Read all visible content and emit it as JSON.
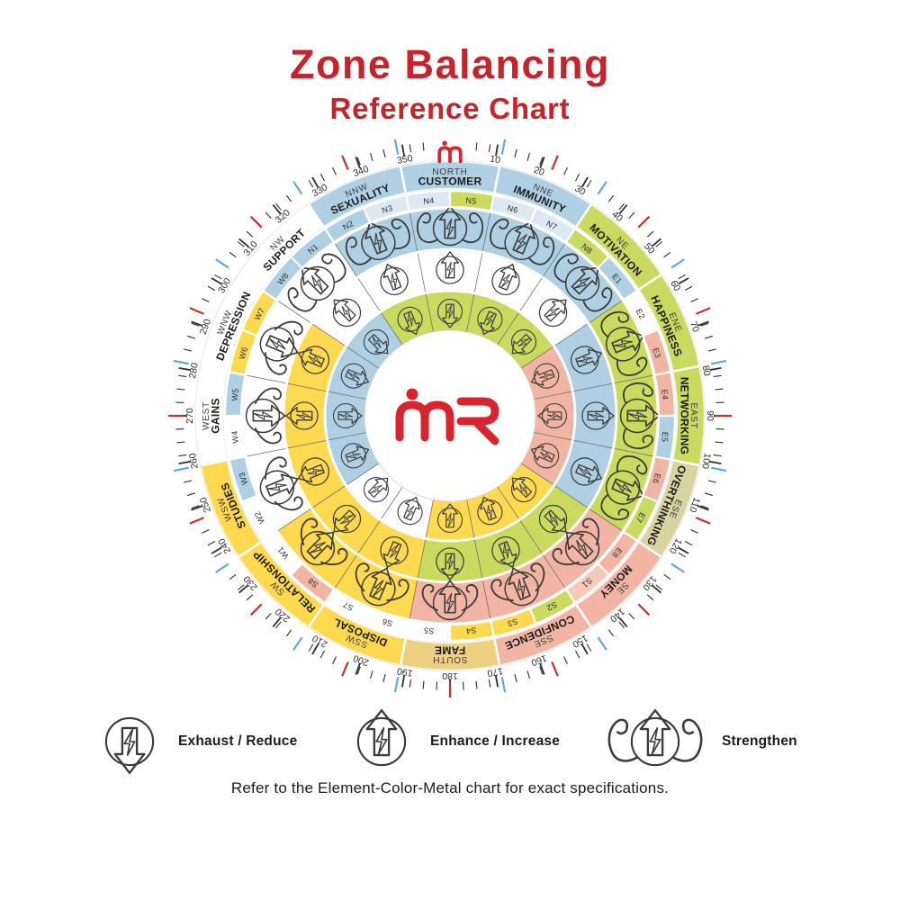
{
  "title": {
    "line1": "Zone Balancing",
    "line2": "Reference Chart"
  },
  "footer": "Refer to the Element-Color-Metal chart for exact specifications.",
  "legend": [
    {
      "icon": "exhaust-icon",
      "label": "Exhaust / Reduce"
    },
    {
      "icon": "enhance-icon",
      "label": "Enhance / Increase"
    },
    {
      "icon": "strengthen-icon",
      "label": "Strengthen"
    }
  ],
  "colors": {
    "title_red": "#c7232b",
    "logo_red": "#d7242e",
    "tick_black": "#2e2e2e",
    "tick_red": "#c23430",
    "tick_blue": "#64a9d6",
    "icon_line": "#3a3a3a",
    "palette": {
      "blue": "#aed0e2",
      "paleblue": "#dce9f2",
      "green": "#c9da5e",
      "yellow": "#ffd94f",
      "salmon": "#f2b5a4",
      "palesalmon": "#f6c9ba",
      "white": "#ffffff",
      "tan": "#d9d2a1",
      "fametan": "#edd180"
    }
  },
  "chart": {
    "center_logo": "MR",
    "degree_labels": [
      10,
      20,
      30,
      40,
      50,
      60,
      70,
      80,
      90,
      100,
      110,
      120,
      130,
      140,
      150,
      160,
      170,
      180,
      190,
      200,
      210,
      220,
      230,
      240,
      250,
      260,
      270,
      280,
      290,
      300,
      310,
      320,
      330,
      340,
      350
    ],
    "zones": [
      {
        "name": "CUSTOMER",
        "direction": "NORTH",
        "bearing": 0,
        "band": "blue",
        "codes": [
          {
            "label": "N4",
            "color": "paleblue"
          },
          {
            "label": "N5",
            "color": "green"
          }
        ],
        "rings": {
          "outer": {
            "color": "blue",
            "icon": "strengthen"
          },
          "middle": {
            "color": "white",
            "icon": "enhance"
          },
          "inner": {
            "color": "green",
            "icon": "reduce"
          }
        }
      },
      {
        "name": "IMMUNITY",
        "direction": "NNE",
        "bearing": 22.5,
        "band": "blue",
        "codes": [
          {
            "label": "N6",
            "color": "paleblue"
          },
          {
            "label": "N7",
            "color": "paleblue"
          }
        ],
        "rings": {
          "outer": {
            "color": "blue",
            "icon": "strengthen"
          },
          "middle": {
            "color": "white",
            "icon": "enhance"
          },
          "inner": {
            "color": "green",
            "icon": "reduce"
          }
        }
      },
      {
        "name": "MOTIVATION",
        "direction": "NE",
        "bearing": 45,
        "band": "green",
        "codes": [
          {
            "label": "N8",
            "color": "green"
          },
          {
            "label": "E1",
            "color": "blue"
          }
        ],
        "rings": {
          "outer": {
            "color": "blue",
            "icon": "strengthen"
          },
          "middle": {
            "color": "white",
            "icon": "enhance"
          },
          "inner": {
            "color": "green",
            "icon": "reduce"
          }
        }
      },
      {
        "name": "HAPPINESS",
        "direction": "ENE",
        "bearing": 67.5,
        "band": "green",
        "codes": [
          {
            "label": "E2",
            "color": "white"
          },
          {
            "label": "E3",
            "color": "salmon"
          }
        ],
        "rings": {
          "outer": {
            "color": "green",
            "icon": "strengthen"
          },
          "middle": {
            "color": "blue",
            "icon": "enhance"
          },
          "inner": {
            "color": "salmon",
            "icon": "reduce"
          }
        }
      },
      {
        "name": "NETWORKING",
        "direction": "EAST",
        "bearing": 90,
        "band": "green",
        "codes": [
          {
            "label": "E4",
            "color": "salmon"
          },
          {
            "label": "E5",
            "color": "blue"
          }
        ],
        "rings": {
          "outer": {
            "color": "green",
            "icon": "strengthen"
          },
          "middle": {
            "color": "blue",
            "icon": "enhance"
          },
          "inner": {
            "color": "salmon",
            "icon": "reduce"
          }
        }
      },
      {
        "name": "OVERTHINKING",
        "direction": "ESE",
        "bearing": 112.5,
        "band": "tan",
        "codes": [
          {
            "label": "E6",
            "color": "salmon"
          },
          {
            "label": "E7",
            "color": "green"
          }
        ],
        "rings": {
          "outer": {
            "color": "green",
            "icon": "strengthen"
          },
          "middle": {
            "color": "blue",
            "icon": "enhance"
          },
          "inner": {
            "color": "salmon",
            "icon": "reduce"
          }
        }
      },
      {
        "name": "MONEY",
        "direction": "SE",
        "bearing": 135,
        "band": "salmon",
        "codes": [
          {
            "label": "E8",
            "color": "salmon"
          },
          {
            "label": "S1",
            "color": "palesalmon"
          }
        ],
        "rings": {
          "outer": {
            "color": "salmon",
            "icon": "exhaust"
          },
          "middle": {
            "color": "green",
            "icon": "enhance"
          },
          "inner": {
            "color": "yellow",
            "icon": "reduce"
          }
        }
      },
      {
        "name": "CONFIDENCE",
        "direction": "SSE",
        "bearing": 157.5,
        "band": "salmon",
        "codes": [
          {
            "label": "S2",
            "color": "green"
          },
          {
            "label": "S3",
            "color": "yellow"
          }
        ],
        "rings": {
          "outer": {
            "color": "salmon",
            "icon": "exhaust"
          },
          "middle": {
            "color": "green",
            "icon": "enhance"
          },
          "inner": {
            "color": "yellow",
            "icon": "reduce"
          }
        }
      },
      {
        "name": "FAME",
        "direction": "SOUTH",
        "bearing": 180,
        "band": "fametan",
        "codes": [
          {
            "label": "S4",
            "color": "yellow"
          },
          {
            "label": "S5",
            "color": "white"
          }
        ],
        "rings": {
          "outer": {
            "color": "salmon",
            "icon": "exhaust"
          },
          "middle": {
            "color": "green",
            "icon": "enhance"
          },
          "inner": {
            "color": "yellow",
            "icon": "reduce"
          }
        }
      },
      {
        "name": "DISPOSAL",
        "direction": "SSW",
        "bearing": 202.5,
        "band": "yellow",
        "codes": [
          {
            "label": "S6",
            "color": "white"
          },
          {
            "label": "S7",
            "color": "white"
          }
        ],
        "rings": {
          "outer": {
            "color": "yellow",
            "icon": "exhaust"
          },
          "middle": {
            "color": "yellow",
            "icon": "enhance"
          },
          "inner": {
            "color": "white",
            "icon": "reduce"
          }
        }
      },
      {
        "name": "RELATIONSHIP",
        "direction": "SW",
        "bearing": 225,
        "band": "yellow",
        "codes": [
          {
            "label": "S8",
            "color": "salmon"
          },
          {
            "label": "W1",
            "color": "white"
          }
        ],
        "rings": {
          "outer": {
            "color": "yellow",
            "icon": "exhaust"
          },
          "middle": {
            "color": "yellow",
            "icon": "enhance"
          },
          "inner": {
            "color": "white",
            "icon": "reduce"
          }
        }
      },
      {
        "name": "STUDIES",
        "direction": "WSW",
        "bearing": 247.5,
        "band": "yellow",
        "codes": [
          {
            "label": "W2",
            "color": "white"
          },
          {
            "label": "W3",
            "color": "blue"
          }
        ],
        "rings": {
          "outer": {
            "color": "white",
            "icon": "exhaust"
          },
          "middle": {
            "color": "yellow",
            "icon": "enhance"
          },
          "inner": {
            "color": "blue",
            "icon": "reduce"
          }
        }
      },
      {
        "name": "GAINS",
        "direction": "WEST",
        "bearing": 270,
        "band": "white",
        "codes": [
          {
            "label": "W4",
            "color": "white"
          },
          {
            "label": "W5",
            "color": "blue"
          }
        ],
        "rings": {
          "outer": {
            "color": "white",
            "icon": "exhaust"
          },
          "middle": {
            "color": "yellow",
            "icon": "enhance"
          },
          "inner": {
            "color": "blue",
            "icon": "reduce"
          }
        }
      },
      {
        "name": "DEPRESSION",
        "direction": "WNW",
        "bearing": 292.5,
        "band": "white",
        "codes": [
          {
            "label": "W6",
            "color": "yellow"
          },
          {
            "label": "W7",
            "color": "yellow"
          }
        ],
        "rings": {
          "outer": {
            "color": "white",
            "icon": "exhaust"
          },
          "middle": {
            "color": "yellow",
            "icon": "enhance"
          },
          "inner": {
            "color": "blue",
            "icon": "reduce"
          }
        }
      },
      {
        "name": "SUPPORT",
        "direction": "NW",
        "bearing": 315,
        "band": "white",
        "codes": [
          {
            "label": "W8",
            "color": "blue"
          },
          {
            "label": "N1",
            "color": "blue"
          }
        ],
        "rings": {
          "outer": {
            "color": "white",
            "icon": "strengthen"
          },
          "middle": {
            "color": "white",
            "icon": "enhance"
          },
          "inner": {
            "color": "blue",
            "icon": "reduce"
          }
        }
      },
      {
        "name": "SEXUALITY",
        "direction": "NNW",
        "bearing": 337.5,
        "band": "blue",
        "codes": [
          {
            "label": "N2",
            "color": "blue"
          },
          {
            "label": "N3",
            "color": "paleblue"
          }
        ],
        "rings": {
          "outer": {
            "color": "blue",
            "icon": "strengthen"
          },
          "middle": {
            "color": "white",
            "icon": "enhance"
          },
          "inner": {
            "color": "green",
            "icon": "reduce"
          }
        }
      }
    ]
  }
}
